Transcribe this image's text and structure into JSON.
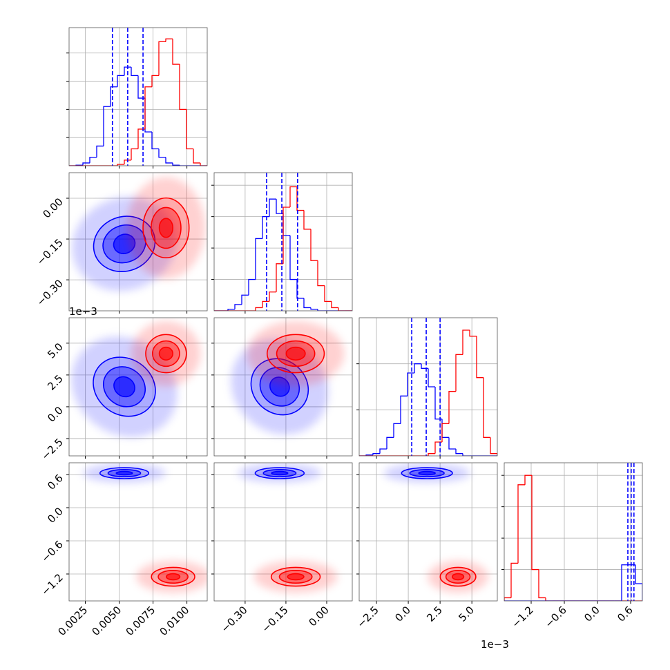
{
  "chart_data": {
    "type": "corner",
    "params": [
      {
        "lim": [
          0.0013,
          0.0115
        ],
        "ticks": [
          0.0025,
          {
            "value": 0.005,
            "label": "0.0050"
          },
          0.0075,
          {
            "value": 0.01,
            "label": "0.0100"
          }
        ]
      },
      {
        "lim": [
          -0.414,
          0.094
        ],
        "ticks": [
          {
            "value": -0.3,
            "label": "−0.30"
          },
          {
            "value": -0.15,
            "label": "−0.15"
          },
          {
            "value": 0,
            "label": "0.00"
          }
        ]
      },
      {
        "lim": [
          -3.86,
          7.0
        ],
        "ticks": [
          {
            "value": -2.5,
            "label": "−2.5"
          },
          {
            "value": 0,
            "label": "0.0"
          },
          2.5,
          {
            "value": 5,
            "label": "5.0"
          }
        ],
        "offset_label": "1e−3"
      },
      {
        "lim": [
          -1.6875,
          0.8125
        ],
        "ticks": [
          {
            "value": -1.2,
            "label": "−1.2"
          },
          {
            "value": -0.6,
            "label": "−0.6"
          },
          {
            "value": 0,
            "label": "0.0"
          },
          0.6
        ]
      }
    ],
    "grid": true,
    "diagonal": [
      {
        "ylim": [
          0,
          4.9
        ],
        "yticks": [
          1,
          2,
          3,
          4
        ],
        "bins": [
          0.0013,
          0.00181,
          0.00232,
          0.00283,
          0.00334,
          0.00385,
          0.00436,
          0.00487,
          0.00538,
          0.00589,
          0.0064,
          0.00691,
          0.00742,
          0.00793,
          0.00844,
          0.00895,
          0.00946,
          0.00997,
          0.01048,
          0.01099,
          0.0115
        ],
        "series": [
          {
            "color": "#0000ff",
            "values": [
              0,
              0.02,
              0.1,
              0.3,
              0.7,
              2.1,
              2.8,
              3.2,
              3.5,
              3.2,
              2.4,
              1.2,
              0.6,
              0.3,
              0.1,
              0.02,
              0,
              0,
              0,
              0
            ]
          },
          {
            "color": "#ff0000",
            "values": [
              0,
              0,
              0,
              0,
              0,
              0,
              0,
              0.05,
              0.2,
              0.6,
              1.3,
              2.8,
              3.2,
              4.4,
              4.5,
              3.6,
              2.0,
              0.6,
              0.1,
              0
            ]
          }
        ],
        "quantiles": [
          0.0045,
          0.00563,
          0.00676
        ],
        "quantile_color": "#0000ff"
      },
      {
        "ylim": [
          0,
          4.4
        ],
        "yticks": [
          1,
          2,
          3,
          4
        ],
        "bins": [
          -0.414,
          -0.3886,
          -0.3632,
          -0.3378,
          -0.3124,
          -0.287,
          -0.2616,
          -0.2362,
          -0.2108,
          -0.1854,
          -0.16,
          -0.1346,
          -0.1092,
          -0.0838,
          -0.0584,
          -0.033,
          -0.0076,
          0.0178,
          0.0432,
          0.0686,
          0.094
        ],
        "series": [
          {
            "color": "#0000ff",
            "values": [
              0,
              0,
              0.05,
              0.2,
              0.5,
              1.0,
              2.3,
              3.0,
              3.56,
              3.1,
              2.4,
              1.0,
              0.4,
              0.1,
              0.05,
              0,
              0,
              0,
              0,
              0
            ]
          },
          {
            "color": "#ff0000",
            "values": [
              0,
              0,
              0,
              0,
              0,
              0,
              0.1,
              0.3,
              0.6,
              1.5,
              3.3,
              3.95,
              3.2,
              2.6,
              1.6,
              0.8,
              0.3,
              0.1,
              0,
              0
            ]
          }
        ],
        "quantiles": [
          -0.221,
          -0.165,
          -0.107
        ],
        "quantile_color": "#0000ff"
      },
      {
        "ylim": [
          0,
          3
        ],
        "yticks": [
          1,
          2
        ],
        "bins": [
          -3.86,
          -3.317,
          -2.774,
          -2.231,
          -1.688,
          -1.145,
          -0.602,
          -0.059,
          0.484,
          1.027,
          1.57,
          2.113,
          2.656,
          3.199,
          3.742,
          4.285,
          4.828,
          5.371,
          5.914,
          6.457,
          7.0
        ],
        "series": [
          {
            "color": "#0000ff",
            "values": [
              0,
              0.02,
              0.05,
              0.15,
              0.4,
              0.7,
              1.3,
              1.8,
              2.0,
              1.9,
              1.5,
              0.8,
              0.4,
              0.15,
              0.05,
              0,
              0,
              0,
              0,
              0
            ]
          },
          {
            "color": "#ff0000",
            "values": [
              0,
              0,
              0,
              0,
              0,
              0,
              0,
              0,
              0,
              0,
              0.05,
              0.3,
              0.7,
              1.4,
              2.2,
              2.73,
              2.6,
              1.7,
              0.4,
              0.05
            ]
          }
        ],
        "quantiles": [
          0.27,
          1.41,
          2.5
        ],
        "quantile_color": "#0000ff"
      },
      {
        "ylim": [
          0,
          4.4
        ],
        "yticks": [
          1,
          2,
          3,
          4
        ],
        "bins": [
          -1.6875,
          -1.5625,
          -1.4375,
          -1.3125,
          -1.1875,
          -1.0625,
          -0.9375,
          -0.8125,
          -0.6875,
          -0.5625,
          -0.4375,
          -0.3125,
          -0.1875,
          -0.0625,
          0.0625,
          0.1875,
          0.3125,
          0.4375,
          0.5625,
          0.6875,
          0.8125
        ],
        "series": [
          {
            "color": "#ff0000",
            "values": [
              0.1,
              1.2,
              3.7,
              4.0,
              1.0,
              0.1,
              0,
              0,
              0,
              0,
              0,
              0,
              0,
              0,
              0,
              0,
              0,
              0,
              0,
              0
            ]
          },
          {
            "color": "#0000ff",
            "values": [
              0,
              0,
              0,
              0,
              0,
              0,
              0,
              0,
              0,
              0,
              0,
              0,
              0,
              0,
              0,
              0,
              0,
              1.15,
              1.15,
              0.55
            ]
          }
        ],
        "quantiles": [
          0.55,
          0.61,
          0.66
        ],
        "quantile_color": "#0000ff"
      }
    ],
    "pairs": [
      {
        "x": 0,
        "y": 1,
        "blobs": [
          {
            "color": "#0000ff",
            "center": [
              0.00538,
              -0.168
            ],
            "sizes": [
              [
                0.0023,
                0.1
              ],
              [
                0.0016,
                0.068
              ],
              [
                0.0008,
                0.035
              ]
            ],
            "angle": -20
          },
          {
            "color": "#ff0000",
            "center": [
              0.00846,
              -0.109
            ],
            "sizes": [
              [
                0.0017,
                0.11
              ],
              [
                0.0011,
                0.075
              ],
              [
                0.0005,
                0.035
              ]
            ],
            "angle": 0
          }
        ]
      },
      {
        "x": 0,
        "y": 2,
        "blobs": [
          {
            "color": "#0000ff",
            "center": [
              0.00538,
              1.575
            ],
            "sizes": [
              [
                0.0024,
                2.2
              ],
              [
                0.0016,
                1.5
              ],
              [
                0.0008,
                0.75
              ]
            ],
            "angle": 35
          },
          {
            "color": "#ff0000",
            "center": [
              0.00846,
              4.18
            ],
            "sizes": [
              [
                0.0015,
                1.5
              ],
              [
                0.001,
                1.0
              ],
              [
                0.0005,
                0.5
              ]
            ],
            "angle": 0
          }
        ]
      },
      {
        "x": 1,
        "y": 2,
        "blobs": [
          {
            "color": "#0000ff",
            "center": [
              -0.173,
              1.575
            ],
            "sizes": [
              [
                0.11,
                2.1
              ],
              [
                0.075,
                1.45
              ],
              [
                0.037,
                0.72
              ]
            ],
            "angle": 40
          },
          {
            "color": "#ff0000",
            "center": [
              -0.114,
              4.18
            ],
            "sizes": [
              [
                0.105,
                1.5
              ],
              [
                0.07,
                1.0
              ],
              [
                0.035,
                0.5
              ]
            ],
            "angle": 0
          }
        ]
      },
      {
        "x": 0,
        "y": 3,
        "blobs": [
          {
            "color": "#0000ff",
            "center": [
              0.00538,
              0.625
            ],
            "sizes": [
              [
                0.0018,
                0.1
              ],
              [
                0.0012,
                0.065
              ],
              [
                0.0006,
                0.03
              ]
            ],
            "angle": 0
          },
          {
            "color": "#ff0000",
            "center": [
              0.00898,
              -1.25
            ],
            "sizes": [
              [
                0.0016,
                0.17
              ],
              [
                0.0011,
                0.115
              ],
              [
                0.0005,
                0.055
              ]
            ],
            "angle": 0
          }
        ]
      },
      {
        "x": 1,
        "y": 3,
        "blobs": [
          {
            "color": "#0000ff",
            "center": [
              -0.173,
              0.625
            ],
            "sizes": [
              [
                0.09,
                0.1
              ],
              [
                0.06,
                0.065
              ],
              [
                0.03,
                0.03
              ]
            ],
            "angle": 0
          },
          {
            "color": "#ff0000",
            "center": [
              -0.114,
              -1.25
            ],
            "sizes": [
              [
                0.09,
                0.17
              ],
              [
                0.06,
                0.115
              ],
              [
                0.03,
                0.055
              ]
            ],
            "angle": 0
          }
        ]
      },
      {
        "x": 2,
        "y": 3,
        "blobs": [
          {
            "color": "#0000ff",
            "center": [
              1.47,
              0.625
            ],
            "sizes": [
              [
                2.0,
                0.1
              ],
              [
                1.35,
                0.065
              ],
              [
                0.65,
                0.03
              ]
            ],
            "angle": 0
          },
          {
            "color": "#ff0000",
            "center": [
              3.91,
              -1.25
            ],
            "sizes": [
              [
                1.4,
                0.17
              ],
              [
                0.95,
                0.115
              ],
              [
                0.45,
                0.055
              ]
            ],
            "angle": 0
          }
        ]
      }
    ]
  }
}
